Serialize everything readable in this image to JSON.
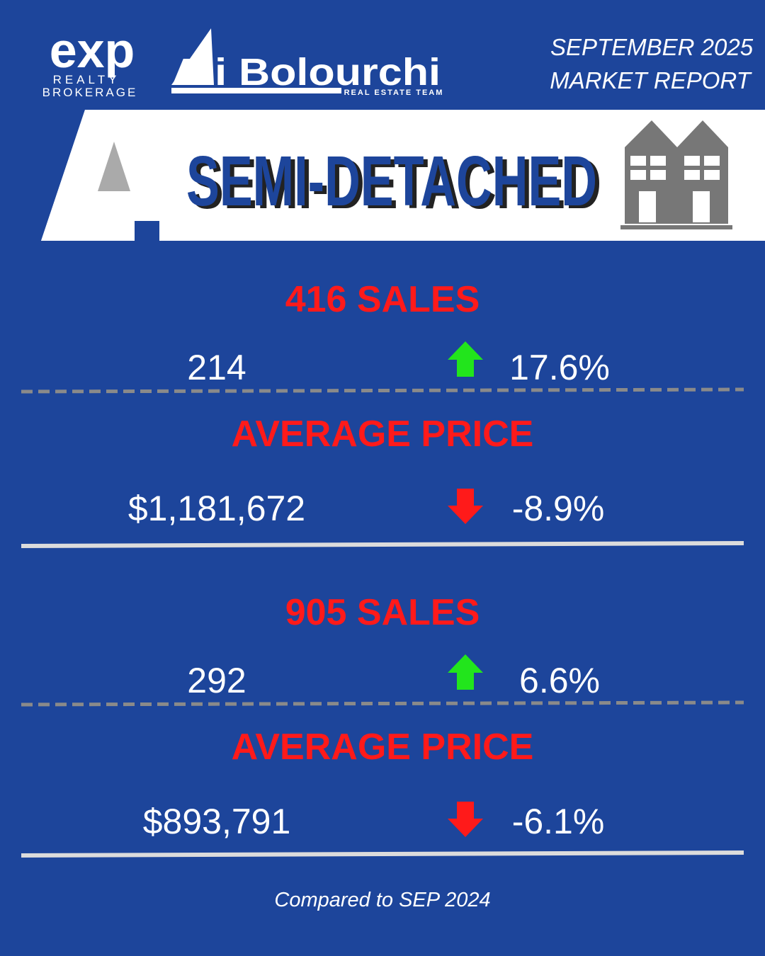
{
  "header": {
    "brokerage_logo": "exp",
    "brokerage_line1": "REALTY",
    "brokerage_line2": "BROKERAGE",
    "team_logo": "Ali Bolourchi",
    "team_tagline": "REAL ESTATE TEAM",
    "report_month": "SEPTEMBER 2025",
    "report_title": "MARKET REPORT"
  },
  "banner": {
    "title": "SEMI-DETACHED"
  },
  "sections": [
    {
      "sales_title": "416 SALES",
      "sales": "214",
      "sales_change": "17.6%",
      "price_title": "AVERAGE PRICE",
      "price": "$1,181,672",
      "price_change": "-8.9%"
    },
    {
      "sales_title": "905 SALES",
      "sales": "292",
      "sales_change": "6.6%",
      "price_title": "AVERAGE PRICE",
      "price": "$893,791",
      "price_change": "-6.1%"
    }
  ],
  "footer": {
    "note": "Compared to SEP 2024"
  }
}
